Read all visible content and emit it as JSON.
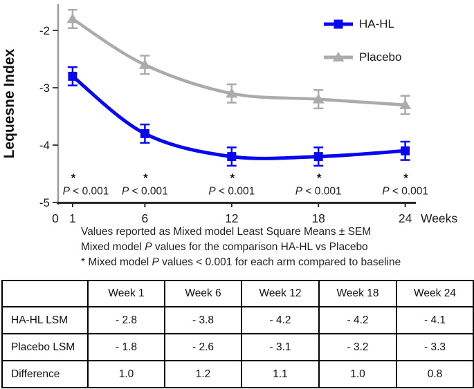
{
  "chart_data": {
    "type": "line",
    "title": "",
    "xlabel": "Weeks",
    "ylabel": "Lequesne Index",
    "x": [
      1,
      6,
      12,
      18,
      24
    ],
    "x_ticks": [
      0,
      1,
      6,
      12,
      18,
      24
    ],
    "y_ticks": [
      -2,
      -3,
      -4,
      -5
    ],
    "xlim": [
      0,
      24
    ],
    "ylim": [
      -5,
      -1.5
    ],
    "grid": false,
    "legend_position": "top-right",
    "series": [
      {
        "name": "HA-HL",
        "marker": "square",
        "color": "#0808f0",
        "values": [
          -2.8,
          -3.8,
          -4.2,
          -4.2,
          -4.1
        ],
        "sem": 0.16
      },
      {
        "name": "Placebo",
        "marker": "triangle-up",
        "color": "#ababab",
        "values": [
          -1.8,
          -2.6,
          -3.1,
          -3.2,
          -3.3
        ],
        "sem": 0.16
      }
    ],
    "annotations": [
      {
        "week": 1,
        "star": "*",
        "label": "P < 0.001"
      },
      {
        "week": 6,
        "star": "*",
        "label": "P < 0.001"
      },
      {
        "week": 12,
        "star": "*",
        "label": "P < 0.001"
      },
      {
        "week": 18,
        "star": "*",
        "label": "P < 0.001"
      },
      {
        "week": 24,
        "star": "*",
        "label": "P < 0.001"
      }
    ],
    "axis_colors": {
      "y_axis": "#9a9a9a",
      "x_axis": "#262626",
      "tick": "#404040",
      "text": "#1a1a1a"
    }
  },
  "footnotes": [
    [
      {
        "t": "Values reported as Mixed model Least Square Means ± SEM"
      }
    ],
    [
      {
        "t": "Mixed model "
      },
      {
        "t": "P",
        "i": true
      },
      {
        "t": " values for the comparison HA-HL vs Placebo"
      }
    ],
    [
      {
        "t": "* Mixed model "
      },
      {
        "t": "P",
        "i": true
      },
      {
        "t": " values < 0.001 for each arm compared to baseline"
      }
    ]
  ],
  "table": {
    "columns": [
      "",
      "Week 1",
      "Week 6",
      "Week 12",
      "Week 18",
      "Week 24"
    ],
    "rows": [
      {
        "label": "HA-HL LSM",
        "values": [
          "- 2.8",
          "- 3.8",
          "- 4.2",
          "- 4.2",
          "- 4.1"
        ]
      },
      {
        "label": "Placebo LSM",
        "values": [
          "- 1.8",
          "- 2.6",
          "- 3.1",
          "- 3.2",
          "- 3.3"
        ]
      },
      {
        "label": "Difference",
        "values": [
          "1.0",
          "1.2",
          "1.1",
          "1.0",
          "0.8"
        ]
      }
    ]
  }
}
